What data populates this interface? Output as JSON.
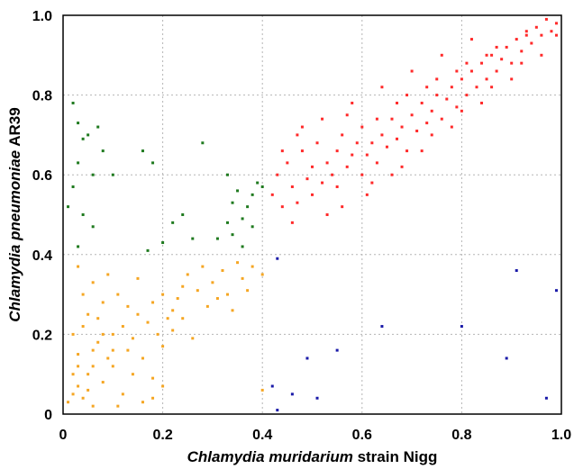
{
  "chart_data": {
    "type": "scatter",
    "xlabel": {
      "italic": "Chlamydia muridarium",
      "plain": " strain Nigg"
    },
    "ylabel": {
      "italic": "Chlamydia pneumoniae",
      "plain": " AR39"
    },
    "xlim": [
      0,
      1.0
    ],
    "ylim": [
      0,
      1.0
    ],
    "xticks": [
      "0",
      "0.2",
      "0.4",
      "0.6",
      "0.8",
      "1.0"
    ],
    "yticks": [
      "0",
      "0.2",
      "0.4",
      "0.6",
      "0.8",
      "1.0"
    ],
    "grid": true,
    "series": [
      {
        "color": "#ff2a2a",
        "points": [
          [
            0.42,
            0.55
          ],
          [
            0.43,
            0.6
          ],
          [
            0.44,
            0.52
          ],
          [
            0.45,
            0.63
          ],
          [
            0.46,
            0.57
          ],
          [
            0.47,
            0.53
          ],
          [
            0.48,
            0.66
          ],
          [
            0.49,
            0.59
          ],
          [
            0.5,
            0.62
          ],
          [
            0.5,
            0.55
          ],
          [
            0.51,
            0.68
          ],
          [
            0.52,
            0.58
          ],
          [
            0.53,
            0.63
          ],
          [
            0.54,
            0.6
          ],
          [
            0.55,
            0.66
          ],
          [
            0.55,
            0.57
          ],
          [
            0.56,
            0.7
          ],
          [
            0.57,
            0.62
          ],
          [
            0.58,
            0.65
          ],
          [
            0.59,
            0.68
          ],
          [
            0.6,
            0.6
          ],
          [
            0.6,
            0.72
          ],
          [
            0.61,
            0.65
          ],
          [
            0.62,
            0.68
          ],
          [
            0.63,
            0.63
          ],
          [
            0.64,
            0.7
          ],
          [
            0.65,
            0.67
          ],
          [
            0.66,
            0.74
          ],
          [
            0.67,
            0.69
          ],
          [
            0.68,
            0.72
          ],
          [
            0.69,
            0.66
          ],
          [
            0.7,
            0.75
          ],
          [
            0.71,
            0.71
          ],
          [
            0.72,
            0.78
          ],
          [
            0.73,
            0.73
          ],
          [
            0.74,
            0.76
          ],
          [
            0.75,
            0.8
          ],
          [
            0.76,
            0.74
          ],
          [
            0.77,
            0.79
          ],
          [
            0.78,
            0.82
          ],
          [
            0.79,
            0.77
          ],
          [
            0.8,
            0.84
          ],
          [
            0.81,
            0.8
          ],
          [
            0.82,
            0.86
          ],
          [
            0.83,
            0.82
          ],
          [
            0.84,
            0.88
          ],
          [
            0.85,
            0.84
          ],
          [
            0.86,
            0.9
          ],
          [
            0.87,
            0.86
          ],
          [
            0.88,
            0.89
          ],
          [
            0.89,
            0.92
          ],
          [
            0.9,
            0.88
          ],
          [
            0.91,
            0.94
          ],
          [
            0.92,
            0.91
          ],
          [
            0.93,
            0.95
          ],
          [
            0.94,
            0.93
          ],
          [
            0.95,
            0.97
          ],
          [
            0.96,
            0.95
          ],
          [
            0.97,
            0.99
          ],
          [
            0.98,
            0.96
          ],
          [
            0.99,
            0.98
          ],
          [
            0.99,
            0.95
          ],
          [
            0.56,
            0.52
          ],
          [
            0.62,
            0.58
          ],
          [
            0.68,
            0.62
          ],
          [
            0.74,
            0.7
          ],
          [
            0.8,
            0.76
          ],
          [
            0.86,
            0.82
          ],
          [
            0.92,
            0.88
          ],
          [
            0.47,
            0.7
          ],
          [
            0.52,
            0.74
          ],
          [
            0.58,
            0.78
          ],
          [
            0.64,
            0.82
          ],
          [
            0.7,
            0.86
          ],
          [
            0.76,
            0.9
          ],
          [
            0.82,
            0.94
          ],
          [
            0.44,
            0.66
          ],
          [
            0.46,
            0.48
          ],
          [
            0.48,
            0.72
          ],
          [
            0.53,
            0.5
          ],
          [
            0.57,
            0.75
          ],
          [
            0.61,
            0.55
          ],
          [
            0.66,
            0.6
          ],
          [
            0.72,
            0.66
          ],
          [
            0.78,
            0.72
          ],
          [
            0.84,
            0.78
          ],
          [
            0.9,
            0.84
          ],
          [
            0.96,
            0.9
          ],
          [
            0.67,
            0.78
          ],
          [
            0.73,
            0.82
          ],
          [
            0.79,
            0.86
          ],
          [
            0.85,
            0.9
          ],
          [
            0.63,
            0.74
          ],
          [
            0.69,
            0.8
          ],
          [
            0.75,
            0.84
          ],
          [
            0.81,
            0.88
          ],
          [
            0.87,
            0.92
          ],
          [
            0.93,
            0.96
          ]
        ]
      },
      {
        "color": "#1f7a1f",
        "points": [
          [
            0.02,
            0.78
          ],
          [
            0.03,
            0.73
          ],
          [
            0.04,
            0.69
          ],
          [
            0.03,
            0.63
          ],
          [
            0.05,
            0.7
          ],
          [
            0.06,
            0.6
          ],
          [
            0.07,
            0.72
          ],
          [
            0.08,
            0.66
          ],
          [
            0.02,
            0.57
          ],
          [
            0.01,
            0.52
          ],
          [
            0.04,
            0.5
          ],
          [
            0.06,
            0.47
          ],
          [
            0.03,
            0.42
          ],
          [
            0.1,
            0.6
          ],
          [
            0.16,
            0.66
          ],
          [
            0.18,
            0.63
          ],
          [
            0.17,
            0.41
          ],
          [
            0.2,
            0.43
          ],
          [
            0.22,
            0.48
          ],
          [
            0.24,
            0.5
          ],
          [
            0.26,
            0.44
          ],
          [
            0.28,
            0.68
          ],
          [
            0.33,
            0.48
          ],
          [
            0.34,
            0.53
          ],
          [
            0.35,
            0.56
          ],
          [
            0.36,
            0.49
          ],
          [
            0.37,
            0.52
          ],
          [
            0.38,
            0.55
          ],
          [
            0.39,
            0.58
          ],
          [
            0.4,
            0.57
          ],
          [
            0.33,
            0.6
          ],
          [
            0.36,
            0.42
          ],
          [
            0.38,
            0.47
          ],
          [
            0.31,
            0.44
          ],
          [
            0.34,
            0.45
          ]
        ]
      },
      {
        "color": "#f5a623",
        "points": [
          [
            0.01,
            0.03
          ],
          [
            0.02,
            0.05
          ],
          [
            0.03,
            0.07
          ],
          [
            0.04,
            0.04
          ],
          [
            0.05,
            0.1
          ],
          [
            0.06,
            0.12
          ],
          [
            0.03,
            0.15
          ],
          [
            0.07,
            0.18
          ],
          [
            0.08,
            0.2
          ],
          [
            0.1,
            0.16
          ],
          [
            0.12,
            0.22
          ],
          [
            0.14,
            0.19
          ],
          [
            0.15,
            0.25
          ],
          [
            0.17,
            0.23
          ],
          [
            0.18,
            0.28
          ],
          [
            0.2,
            0.3
          ],
          [
            0.22,
            0.26
          ],
          [
            0.24,
            0.32
          ],
          [
            0.25,
            0.35
          ],
          [
            0.27,
            0.31
          ],
          [
            0.28,
            0.37
          ],
          [
            0.3,
            0.33
          ],
          [
            0.32,
            0.36
          ],
          [
            0.33,
            0.3
          ],
          [
            0.35,
            0.38
          ],
          [
            0.36,
            0.34
          ],
          [
            0.38,
            0.37
          ],
          [
            0.4,
            0.35
          ],
          [
            0.03,
            0.37
          ],
          [
            0.04,
            0.3
          ],
          [
            0.05,
            0.25
          ],
          [
            0.06,
            0.33
          ],
          [
            0.08,
            0.28
          ],
          [
            0.09,
            0.35
          ],
          [
            0.11,
            0.3
          ],
          [
            0.13,
            0.27
          ],
          [
            0.15,
            0.34
          ],
          [
            0.02,
            0.2
          ],
          [
            0.04,
            0.22
          ],
          [
            0.06,
            0.02
          ],
          [
            0.08,
            0.08
          ],
          [
            0.1,
            0.12
          ],
          [
            0.12,
            0.05
          ],
          [
            0.14,
            0.1
          ],
          [
            0.16,
            0.14
          ],
          [
            0.18,
            0.09
          ],
          [
            0.2,
            0.17
          ],
          [
            0.22,
            0.21
          ],
          [
            0.24,
            0.24
          ],
          [
            0.26,
            0.19
          ],
          [
            0.16,
            0.03
          ],
          [
            0.18,
            0.04
          ],
          [
            0.2,
            0.07
          ],
          [
            0.4,
            0.06
          ],
          [
            0.11,
            0.02
          ],
          [
            0.05,
            0.06
          ],
          [
            0.09,
            0.14
          ],
          [
            0.13,
            0.16
          ],
          [
            0.23,
            0.29
          ],
          [
            0.29,
            0.27
          ],
          [
            0.31,
            0.29
          ],
          [
            0.34,
            0.26
          ],
          [
            0.37,
            0.31
          ],
          [
            0.21,
            0.24
          ],
          [
            0.19,
            0.2
          ],
          [
            0.07,
            0.24
          ],
          [
            0.02,
            0.1
          ],
          [
            0.03,
            0.12
          ],
          [
            0.06,
            0.16
          ],
          [
            0.1,
            0.2
          ]
        ]
      },
      {
        "color": "#1a1aa8",
        "points": [
          [
            0.43,
            0.39
          ],
          [
            0.42,
            0.07
          ],
          [
            0.43,
            0.01
          ],
          [
            0.46,
            0.05
          ],
          [
            0.49,
            0.14
          ],
          [
            0.51,
            0.04
          ],
          [
            0.55,
            0.16
          ],
          [
            0.64,
            0.22
          ],
          [
            0.8,
            0.22
          ],
          [
            0.89,
            0.14
          ],
          [
            0.91,
            0.36
          ],
          [
            0.97,
            0.04
          ],
          [
            0.99,
            0.31
          ]
        ]
      }
    ]
  }
}
